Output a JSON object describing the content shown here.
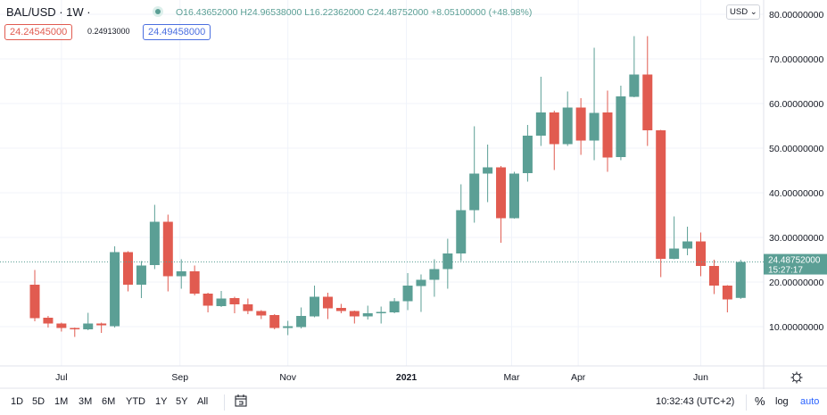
{
  "header": {
    "symbol": "BAL/USD · 1W ·",
    "ohlc": "O16.43652000 H24.96538000 L16.22362000 C24.48752000 +8.05100000 (+48.98%)",
    "bid": "24.24545000",
    "spread": "0.24913000",
    "ask": "24.49458000",
    "currency": "USD ⌄"
  },
  "colors": {
    "up": "#5b9f95",
    "down": "#e15b50",
    "grid": "#f0f3fa",
    "accent": "#2962ff"
  },
  "chart_data": {
    "type": "candlestick",
    "ylim": [
      0,
      83
    ],
    "yticks": [
      10,
      20,
      30,
      40,
      50,
      60,
      70,
      80
    ],
    "ytick_labels": [
      "10.00000000",
      "20.00000000",
      "30.00000000",
      "40.00000000",
      "50.00000000",
      "60.00000000",
      "70.00000000",
      "80.00000000"
    ],
    "xlabels": [
      {
        "label": "Jul",
        "index": 2
      },
      {
        "label": "Sep",
        "index": 10.9
      },
      {
        "label": "Nov",
        "index": 19
      },
      {
        "label": "2021",
        "index": 27.9,
        "bold": true
      },
      {
        "label": "Mar",
        "index": 35.8
      },
      {
        "label": "Apr",
        "index": 40.8
      },
      {
        "label": "Jun",
        "index": 50
      }
    ],
    "last_price": "24.48752000",
    "countdown": "15:27:17",
    "last_value": 24.48752,
    "candles": [
      [
        19.4,
        22.7,
        11.2,
        11.9
      ],
      [
        12.0,
        12.4,
        9.8,
        10.7
      ],
      [
        10.7,
        10.9,
        8.9,
        9.7
      ],
      [
        9.7,
        9.8,
        7.7,
        9.4
      ],
      [
        9.4,
        13.1,
        9.2,
        10.7
      ],
      [
        10.7,
        10.9,
        8.6,
        10.3
      ],
      [
        10.1,
        28.0,
        9.8,
        26.7
      ],
      [
        26.7,
        26.9,
        17.9,
        19.4
      ],
      [
        19.4,
        24.7,
        16.4,
        23.7
      ],
      [
        23.8,
        37.3,
        22.9,
        33.5
      ],
      [
        33.5,
        35.1,
        17.9,
        21.3
      ],
      [
        21.3,
        25.1,
        18.5,
        22.4
      ],
      [
        22.4,
        23.7,
        17.0,
        17.4
      ],
      [
        17.4,
        17.6,
        13.2,
        14.7
      ],
      [
        14.6,
        18.0,
        14.4,
        16.3
      ],
      [
        16.4,
        16.7,
        13.0,
        15.0
      ],
      [
        15.0,
        16.3,
        12.8,
        13.5
      ],
      [
        13.5,
        13.7,
        11.7,
        12.5
      ],
      [
        12.6,
        12.8,
        9.4,
        9.7
      ],
      [
        9.7,
        11.3,
        8.1,
        10.1
      ],
      [
        9.9,
        14.3,
        9.6,
        12.4
      ],
      [
        12.3,
        19.2,
        12.1,
        16.7
      ],
      [
        16.7,
        17.6,
        11.7,
        14.1
      ],
      [
        14.2,
        15.1,
        13.0,
        13.5
      ],
      [
        13.5,
        13.6,
        10.7,
        12.3
      ],
      [
        12.3,
        14.7,
        11.6,
        13.0
      ],
      [
        13.0,
        14.5,
        10.7,
        13.3
      ],
      [
        13.2,
        16.4,
        13.0,
        15.7
      ],
      [
        15.7,
        22.0,
        13.7,
        19.2
      ],
      [
        19.1,
        21.7,
        13.3,
        20.5
      ],
      [
        20.5,
        25.1,
        16.7,
        22.9
      ],
      [
        22.9,
        29.7,
        18.5,
        26.4
      ],
      [
        26.4,
        41.9,
        24.7,
        36.1
      ],
      [
        36.1,
        54.9,
        33.3,
        44.3
      ],
      [
        44.3,
        50.8,
        37.9,
        45.7
      ],
      [
        45.7,
        46.0,
        28.8,
        34.3
      ],
      [
        34.3,
        44.7,
        34.2,
        44.3
      ],
      [
        44.4,
        55.2,
        42.5,
        52.8
      ],
      [
        52.8,
        66.0,
        50.5,
        58.0
      ],
      [
        58.0,
        58.4,
        45.1,
        50.9
      ],
      [
        50.9,
        62.7,
        50.5,
        59.1
      ],
      [
        59.1,
        61.2,
        48.5,
        51.7
      ],
      [
        51.7,
        72.5,
        47.3,
        57.9
      ],
      [
        58.0,
        62.9,
        44.7,
        47.9
      ],
      [
        48.0,
        64.0,
        47.3,
        61.6
      ],
      [
        61.5,
        75.1,
        61.4,
        66.5
      ],
      [
        66.5,
        75.1,
        50.5,
        54.0
      ],
      [
        54.0,
        54.1,
        21.1,
        25.2
      ],
      [
        25.2,
        34.7,
        25.1,
        27.5
      ],
      [
        27.5,
        32.4,
        26.0,
        29.1
      ],
      [
        29.1,
        31.1,
        21.3,
        23.6
      ],
      [
        23.6,
        25.0,
        17.3,
        19.2
      ],
      [
        19.2,
        19.3,
        13.2,
        16.1
      ],
      [
        16.44,
        24.97,
        16.22,
        24.49
      ]
    ]
  },
  "toolbar": {
    "ranges": [
      "1D",
      "5D",
      "1M",
      "3M",
      "6M",
      "YTD",
      "1Y",
      "5Y",
      "All"
    ],
    "time": "10:32:43 (UTC+2)",
    "percent": "%",
    "log": "log",
    "auto": "auto"
  }
}
